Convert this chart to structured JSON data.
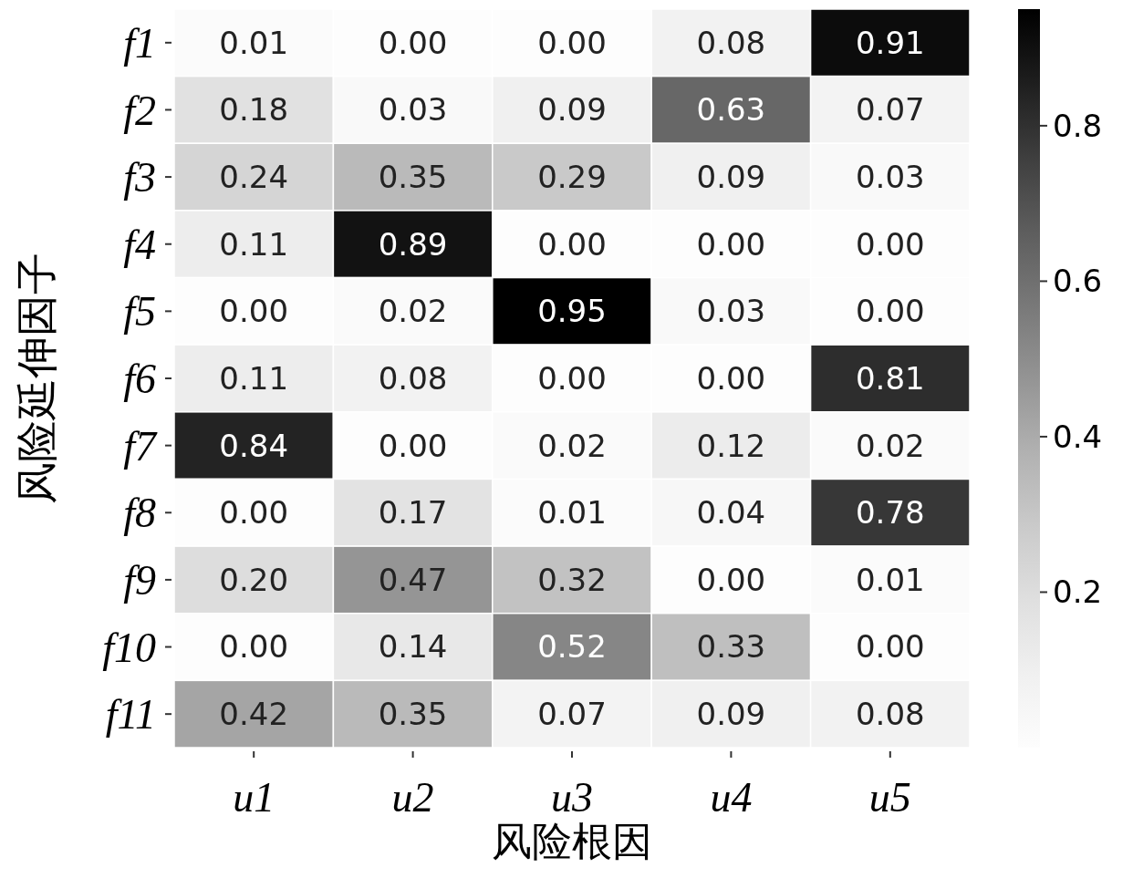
{
  "chart_data": {
    "type": "heatmap",
    "xlabel": "风险根因",
    "ylabel": "风险延伸因子",
    "categories": [
      "u1",
      "u2",
      "u3",
      "u4",
      "u5"
    ],
    "y_categories": [
      "f1",
      "f2",
      "f3",
      "f4",
      "f5",
      "f6",
      "f7",
      "f8",
      "f9",
      "f10",
      "f11"
    ],
    "cells": [
      [
        0.01,
        0.0,
        0.0,
        0.08,
        0.91
      ],
      [
        0.18,
        0.03,
        0.09,
        0.63,
        0.07
      ],
      [
        0.24,
        0.35,
        0.29,
        0.09,
        0.03
      ],
      [
        0.11,
        0.89,
        0.0,
        0.0,
        0.0
      ],
      [
        0.0,
        0.02,
        0.95,
        0.03,
        0.0
      ],
      [
        0.11,
        0.08,
        0.0,
        0.0,
        0.81
      ],
      [
        0.84,
        0.0,
        0.02,
        0.12,
        0.02
      ],
      [
        0.0,
        0.17,
        0.01,
        0.04,
        0.78
      ],
      [
        0.2,
        0.47,
        0.32,
        0.0,
        0.01
      ],
      [
        0.0,
        0.14,
        0.52,
        0.33,
        0.0
      ],
      [
        0.42,
        0.35,
        0.07,
        0.09,
        0.08
      ]
    ],
    "cell_labels": [
      [
        "0.01",
        "0.00",
        "0.00",
        "0.08",
        "0.91"
      ],
      [
        "0.18",
        "0.03",
        "0.09",
        "0.63",
        "0.07"
      ],
      [
        "0.24",
        "0.35",
        "0.29",
        "0.09",
        "0.03"
      ],
      [
        "0.11",
        "0.89",
        "0.00",
        "0.00",
        "0.00"
      ],
      [
        "0.00",
        "0.02",
        "0.95",
        "0.03",
        "0.00"
      ],
      [
        "0.11",
        "0.08",
        "0.00",
        "0.00",
        "0.81"
      ],
      [
        "0.84",
        "0.00",
        "0.02",
        "0.12",
        "0.02"
      ],
      [
        "0.00",
        "0.17",
        "0.01",
        "0.04",
        "0.78"
      ],
      [
        "0.20",
        "0.47",
        "0.32",
        "0.00",
        "0.01"
      ],
      [
        "0.00",
        "0.14",
        "0.52",
        "0.33",
        "0.00"
      ],
      [
        "0.42",
        "0.35",
        "0.07",
        "0.09",
        "0.08"
      ]
    ],
    "clim": [
      0,
      0.95
    ],
    "cticks": [
      0.2,
      0.4,
      0.6,
      0.8
    ]
  }
}
